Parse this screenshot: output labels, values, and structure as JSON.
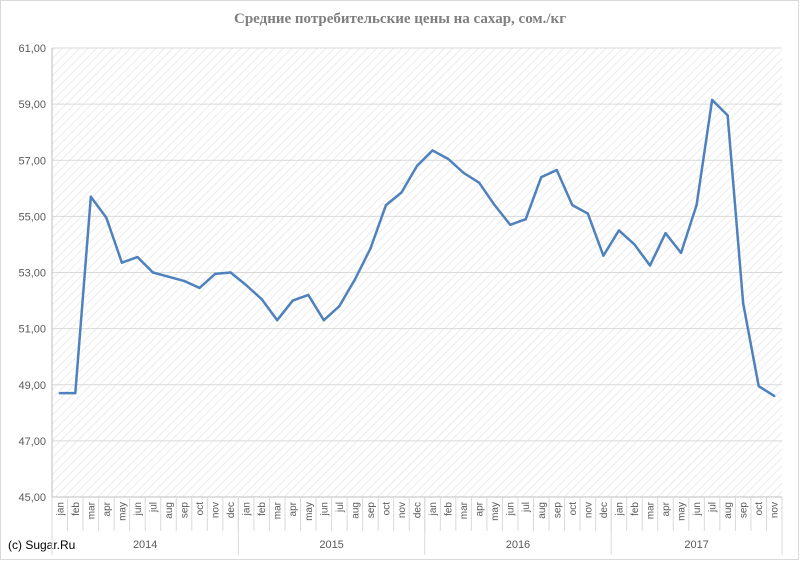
{
  "chart_data": {
    "type": "line",
    "title": "Средние потребительские цены на сахар, сом./кг",
    "source": "(c) Sugar.Ru",
    "ylim": [
      45,
      61
    ],
    "yticks": [
      "45,00",
      "47,00",
      "49,00",
      "51,00",
      "53,00",
      "55,00",
      "57,00",
      "59,00",
      "61,00"
    ],
    "grid": true,
    "legend": "none",
    "colors": {
      "line": "#4f81bd",
      "grid": "#d9d9d9",
      "axis": "#bfbfbf"
    },
    "years": [
      {
        "label": "2014",
        "months": 12
      },
      {
        "label": "2015",
        "months": 12
      },
      {
        "label": "2016",
        "months": 12
      },
      {
        "label": "2017",
        "months": 11
      }
    ],
    "categories": [
      "jan",
      "feb",
      "mar",
      "apr",
      "may",
      "jun",
      "jul",
      "aug",
      "sep",
      "oct",
      "nov",
      "dec",
      "jan",
      "feb",
      "mar",
      "apr",
      "may",
      "jun",
      "jul",
      "aug",
      "sep",
      "oct",
      "nov",
      "dec",
      "jan",
      "feb",
      "mar",
      "apr",
      "may",
      "jun",
      "jul",
      "aug",
      "sep",
      "oct",
      "nov",
      "dec",
      "jan",
      "feb",
      "mar",
      "apr",
      "may",
      "jun",
      "jul",
      "aug",
      "sep",
      "oct",
      "nov"
    ],
    "series": [
      {
        "values": [
          48.7,
          48.7,
          55.7,
          54.95,
          53.35,
          53.55,
          53.0,
          52.85,
          52.7,
          52.45,
          52.95,
          53.0,
          52.55,
          52.05,
          51.3,
          52.0,
          52.2,
          51.3,
          51.8,
          52.75,
          53.85,
          55.4,
          55.85,
          56.8,
          57.35,
          57.05,
          56.55,
          56.2,
          55.4,
          54.7,
          54.9,
          56.4,
          56.65,
          55.4,
          55.1,
          53.6,
          54.5,
          54.0,
          53.25,
          54.4,
          53.7,
          55.4,
          59.15,
          58.6,
          51.9,
          48.95,
          48.6
        ]
      }
    ]
  }
}
